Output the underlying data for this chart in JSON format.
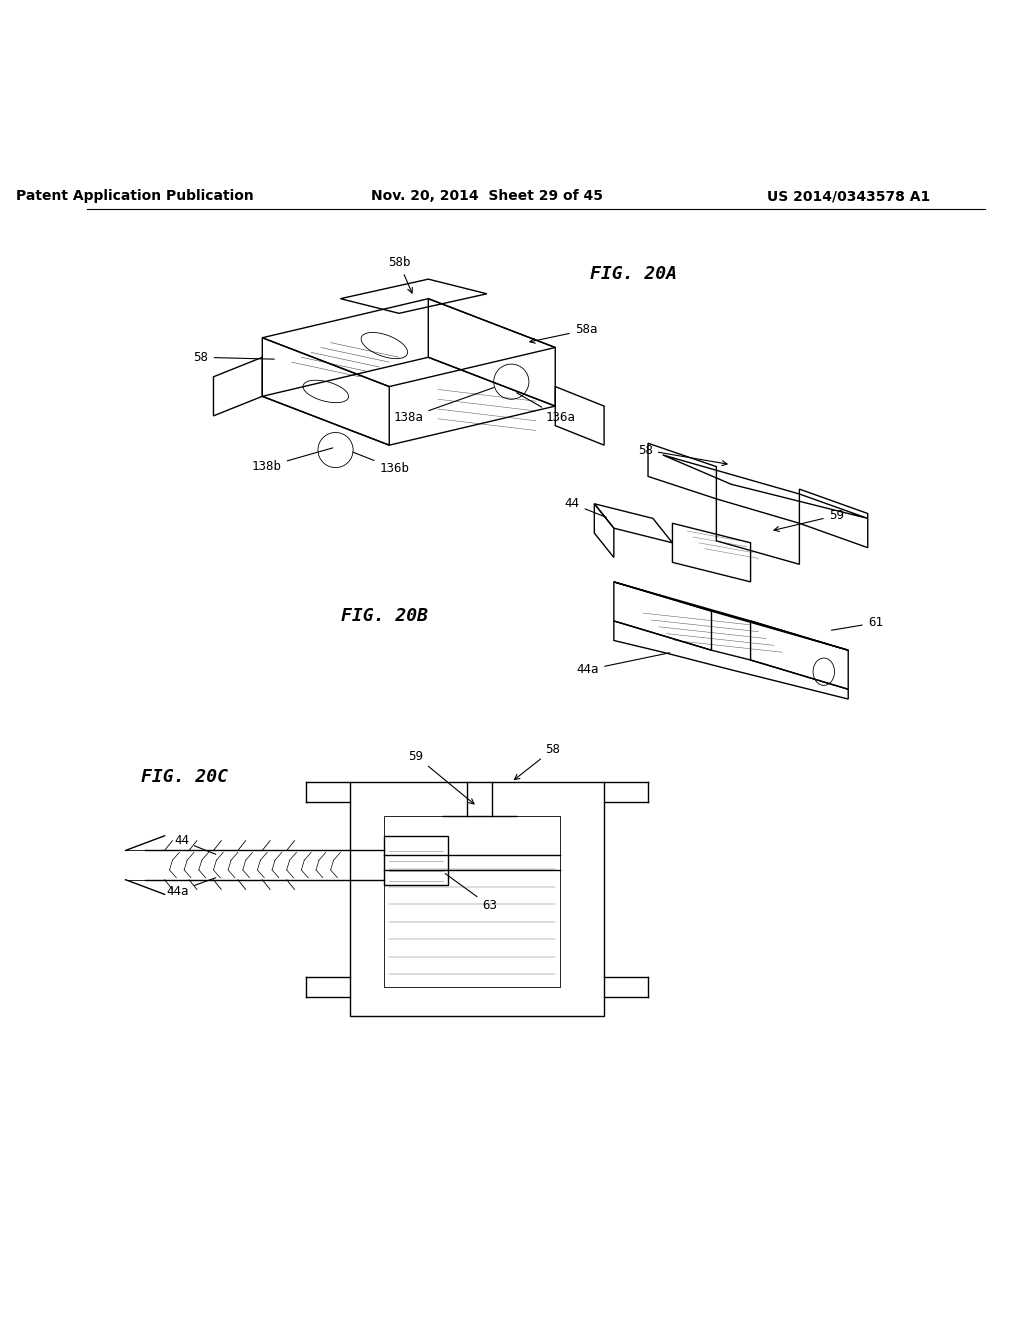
{
  "page_title_left": "Patent Application Publication",
  "page_title_center": "Nov. 20, 2014  Sheet 29 of 45",
  "page_title_right": "US 2014/0343578 A1",
  "fig_20a_label": "FIG. 20A",
  "fig_20b_label": "FIG. 20B",
  "fig_20c_label": "FIG. 20C",
  "background_color": "#ffffff",
  "line_color": "#000000",
  "header_fontsize": 10,
  "fig_label_fontsize": 13,
  "callout_fontsize": 9
}
